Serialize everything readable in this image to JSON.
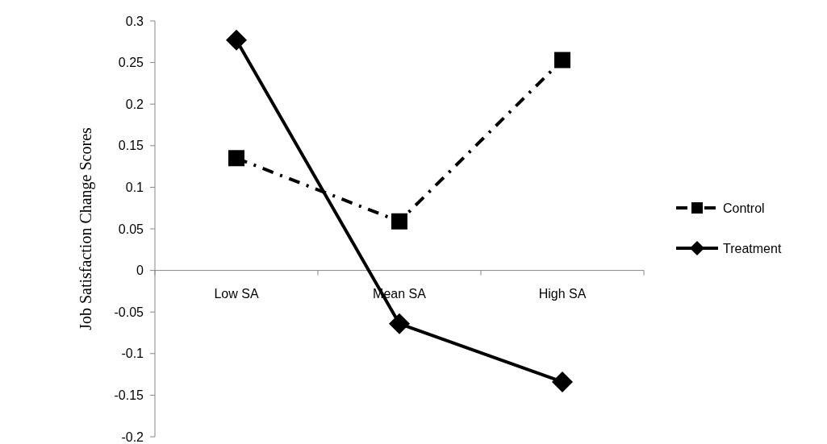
{
  "chart_data": {
    "type": "line",
    "ylabel": "Job Satisfaction Change Scores",
    "categories": [
      "Low SA",
      "Mean SA",
      "High SA"
    ],
    "series": [
      {
        "name": "Control",
        "color": "#000000",
        "values": [
          0.135,
          0.059,
          0.253
        ],
        "marker": "square",
        "line_style": "dashed"
      },
      {
        "name": "Treatment",
        "color": "#000000",
        "values": [
          0.277,
          -0.064,
          -0.134
        ],
        "marker": "diamond",
        "line_style": "solid"
      }
    ],
    "ylim": [
      -0.2,
      0.3
    ],
    "yticks": [
      -0.2,
      -0.15,
      -0.1,
      -0.05,
      0,
      0.05,
      0.1,
      0.15,
      0.2,
      0.25,
      0.3
    ],
    "grid": false,
    "legend": "right"
  }
}
